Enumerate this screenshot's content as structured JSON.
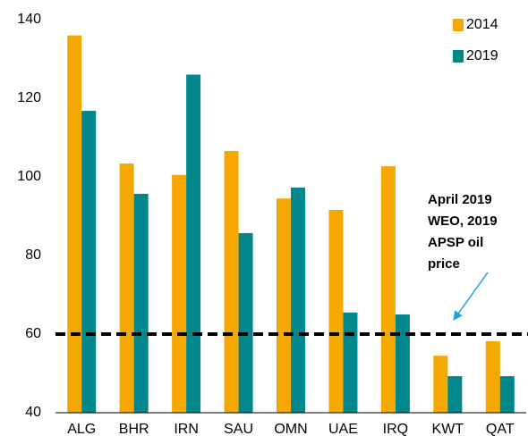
{
  "chart_data": {
    "type": "bar",
    "categories": [
      "ALG",
      "BHR",
      "IRN",
      "SAU",
      "OMN",
      "UAE",
      "IRQ",
      "KWT",
      "QAT"
    ],
    "series": [
      {
        "name": "2014",
        "color": "#f5a800",
        "values": [
          136,
          103.4,
          100.5,
          106.6,
          94.5,
          91.6,
          102.7,
          54.5,
          58.2
        ]
      },
      {
        "name": "2019",
        "color": "#00868b",
        "values": [
          116.8,
          95.7,
          126,
          85.7,
          97.3,
          65.5,
          65,
          49.3,
          49.3
        ]
      }
    ],
    "ylim": [
      40,
      140
    ],
    "yticks": [
      40,
      60,
      80,
      100,
      120,
      140
    ],
    "reference_line": 60,
    "annotation": [
      "April 2019",
      "WEO, 2019",
      "APSP oil",
      "price"
    ],
    "legend": "top-right",
    "grid": false
  }
}
